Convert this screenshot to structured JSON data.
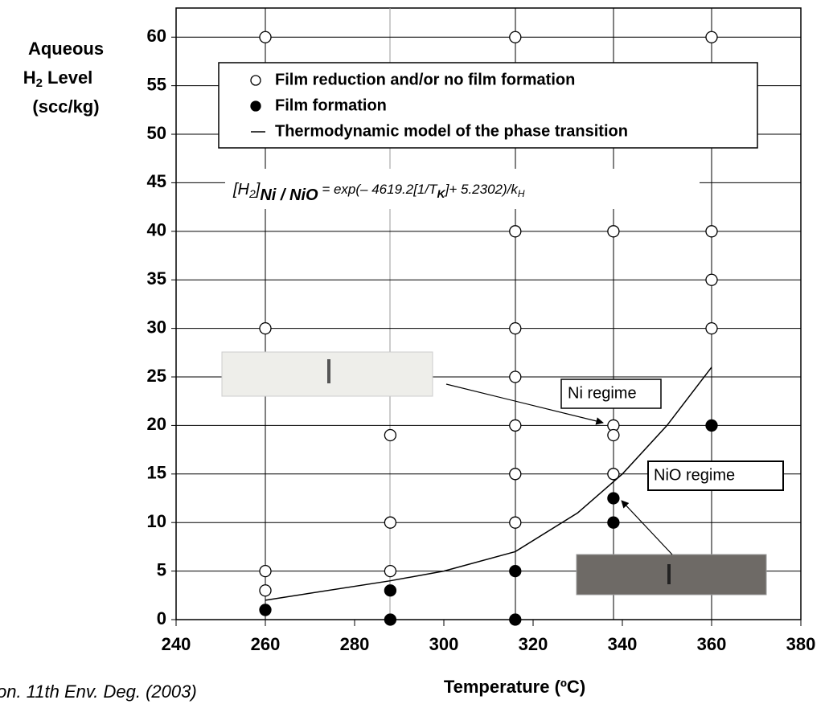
{
  "chart_data": {
    "type": "scatter",
    "x_label": "Temperature (ºC)",
    "y_label": [
      "Aqueous",
      "H",
      "2",
      " Level",
      "(scc/kg)"
    ],
    "equation": [
      "[H",
      "2",
      "]",
      "Ni / NiO",
      " = exp(– 4619.2[1/T",
      "K",
      "]+ 5.2302)/k",
      "H"
    ],
    "citation": "on. 11th Env. Deg.  (2003)",
    "annotations": [
      "Ni regime",
      "NiO regime"
    ],
    "xlim": [
      240,
      380
    ],
    "xticks": [
      240,
      260,
      280,
      300,
      320,
      340,
      360,
      380
    ],
    "ylim": [
      0,
      63
    ],
    "yticks": [
      0,
      5,
      10,
      15,
      20,
      25,
      30,
      35,
      40,
      45,
      50,
      55,
      60
    ],
    "grid": "y",
    "series": [
      {
        "name": "Film reduction and/or no film formation",
        "marker": "open",
        "color": "#000000",
        "x": [
          260,
          260,
          260,
          260,
          288,
          288,
          288,
          316,
          316,
          316,
          316,
          316,
          316,
          316,
          338,
          338,
          338,
          338,
          360,
          360,
          360,
          360
        ],
        "values": [
          60,
          30,
          5,
          3,
          19,
          10,
          5,
          60,
          40,
          30,
          25,
          20,
          15,
          10,
          40,
          20,
          19,
          15,
          60,
          40,
          35,
          30
        ]
      },
      {
        "name": "Film formation",
        "marker": "filled",
        "color": "#000000",
        "x": [
          260,
          288,
          288,
          316,
          316,
          338,
          338,
          360
        ],
        "values": [
          1,
          3,
          0,
          5,
          0,
          12.5,
          10,
          20
        ]
      },
      {
        "name": "Thermodynamic model of the phase transition",
        "marker": "line",
        "color": "#000000",
        "x": [
          260,
          288,
          300,
          316,
          330,
          340,
          350,
          360
        ],
        "values": [
          2,
          4,
          5,
          7,
          11,
          15,
          20,
          26
        ]
      }
    ]
  }
}
